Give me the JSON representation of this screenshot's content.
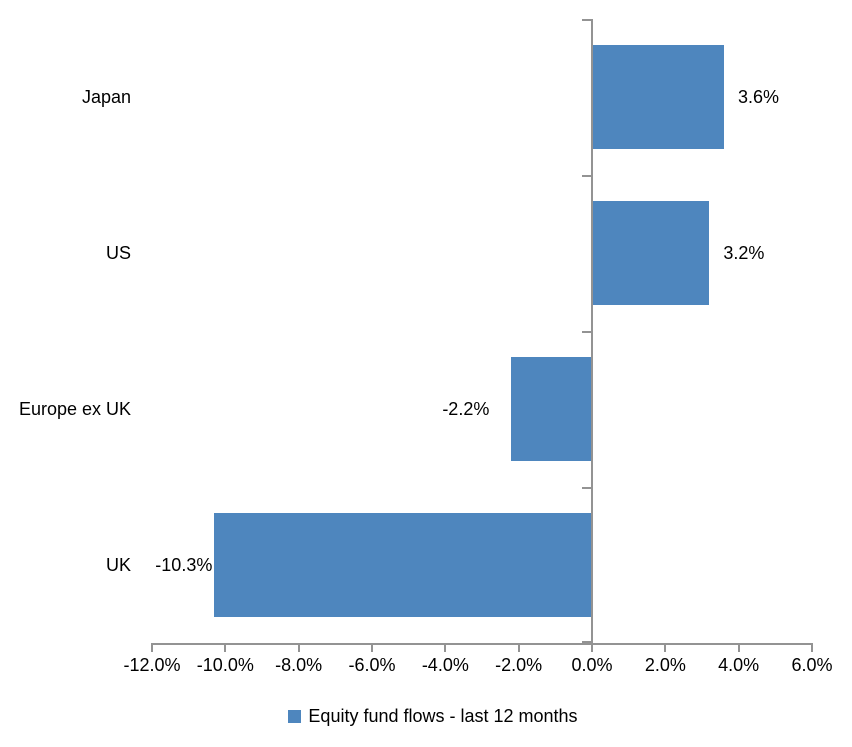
{
  "chart_data": {
    "type": "bar",
    "orientation": "horizontal",
    "title": "",
    "xlabel": "",
    "ylabel": "",
    "categories": [
      "Japan",
      "US",
      "Europe ex UK",
      "UK"
    ],
    "series": [
      {
        "name": "Equity fund flows - last 12 months",
        "values": [
          3.6,
          3.2,
          -2.2,
          -10.3
        ],
        "labels": [
          "3.6%",
          "3.2%",
          "-2.2%",
          "-10.3%"
        ],
        "color": "#4E86BE"
      }
    ],
    "xlim": [
      -12,
      6
    ],
    "x_ticks": [
      -12,
      -10,
      -8,
      -6,
      -4,
      -2,
      0,
      2,
      4,
      6
    ],
    "x_tick_labels": [
      "-12.0%",
      "-10.0%",
      "-8.0%",
      "-6.0%",
      "-4.0%",
      "-2.0%",
      "0.0%",
      "2.0%",
      "4.0%",
      "6.0%"
    ],
    "grid": false,
    "legend_position": "bottom",
    "colors": {
      "bar": "#4E86BE",
      "axis": "#939393",
      "text": "#000000",
      "background": "#FFFFFF"
    }
  }
}
